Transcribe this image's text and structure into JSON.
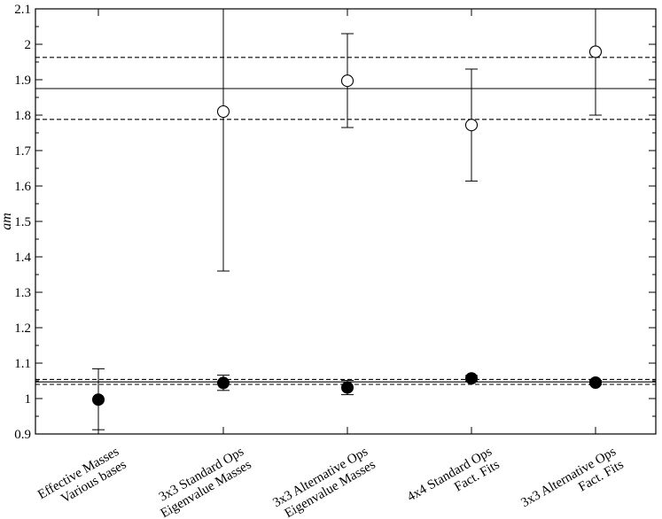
{
  "chart_data": {
    "type": "scatter",
    "title": "",
    "xlabel": "",
    "ylabel": "am",
    "ylim": [
      0.9,
      2.1
    ],
    "yticks": [
      "0.9",
      "1",
      "1.1",
      "1.2",
      "1.3",
      "1.4",
      "1.5",
      "1.6",
      "1.7",
      "1.8",
      "1.9",
      "2",
      "2.1"
    ],
    "categories": [
      [
        "Effective Masses",
        "Various bases"
      ],
      [
        "3x3 Standard Ops",
        "Eigenvalue Masses"
      ],
      [
        "3x3 Alternative Ops",
        "Eigenvalue Masses"
      ],
      [
        "4x4 Standard Ops",
        "Fact. Fits"
      ],
      [
        "3x3 Alternative Ops",
        "Fact. Fits"
      ]
    ],
    "series": [
      {
        "marker": "filled-circle",
        "points": [
          {
            "category": 0,
            "y": 0.997,
            "err_low": 0.912,
            "err_high": 1.084
          },
          {
            "category": 1,
            "y": 1.044,
            "err_low": 1.023,
            "err_high": 1.066
          },
          {
            "category": 2,
            "y": 1.031,
            "err_low": 1.011,
            "err_high": 1.051
          },
          {
            "category": 3,
            "y": 1.057,
            "err_low": 1.049,
            "err_high": 1.065
          },
          {
            "category": 4,
            "y": 1.045,
            "err_low": 1.039,
            "err_high": 1.051
          }
        ]
      },
      {
        "marker": "open-circle",
        "points": [
          {
            "category": 1,
            "y": 1.81,
            "err_low": 1.36,
            "err_high": 2.1
          },
          {
            "category": 2,
            "y": 1.897,
            "err_low": 1.765,
            "err_high": 2.03
          },
          {
            "category": 3,
            "y": 1.772,
            "err_low": 1.614,
            "err_high": 1.93
          },
          {
            "category": 4,
            "y": 1.979,
            "err_low": 1.8,
            "err_high": 2.1
          }
        ]
      }
    ],
    "reference_lines": [
      {
        "y": 1.875,
        "style": "solid"
      },
      {
        "y": 1.963,
        "style": "dashed"
      },
      {
        "y": 1.788,
        "style": "dashed"
      },
      {
        "y": 1.047,
        "style": "solid"
      },
      {
        "y": 1.054,
        "style": "dashed"
      },
      {
        "y": 1.04,
        "style": "dashed"
      }
    ],
    "grid": false,
    "legend": "none"
  }
}
